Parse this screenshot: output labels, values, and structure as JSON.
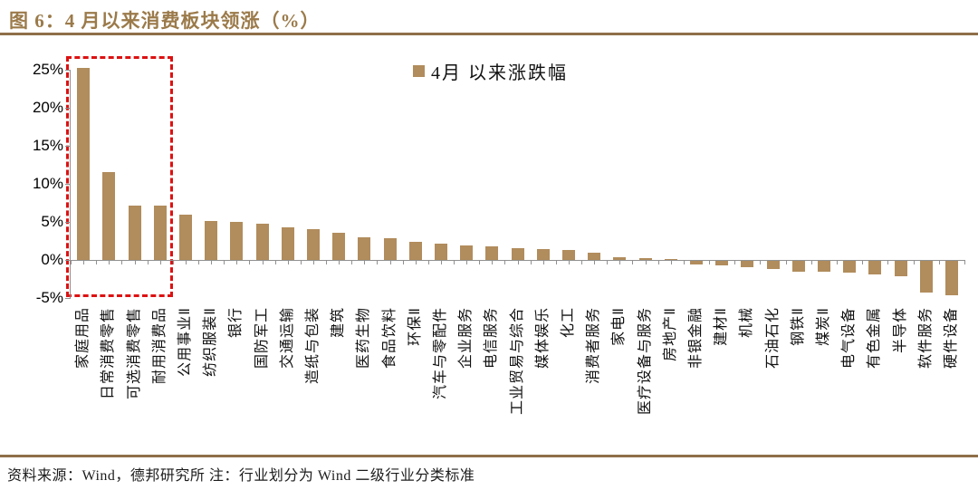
{
  "title": "图 6：4 月以来消费板块领涨（%）",
  "footer": {
    "source_note": "资料来源：Wind，德邦研究所 注：行业划分为 Wind 二级行业分类标准"
  },
  "colors": {
    "accent_brown": "#9b7a4a",
    "rule_brown": "#8f6f49",
    "bar_tan": "#b18c5c",
    "highlight_red": "#dd1111",
    "axis_gray": "#909090"
  },
  "chart_data": {
    "type": "bar",
    "title": "图 6：4 月以来消费板块领涨（%）",
    "legend": "4月 以来涨跌幅",
    "legend_position": "top-center",
    "grid": false,
    "xlabel": "",
    "ylabel": "",
    "ylim": [
      -5,
      25
    ],
    "yticks": [
      25,
      20,
      15,
      10,
      5,
      0,
      -5
    ],
    "ytick_format": "percent",
    "bar_color": "#b18c5c",
    "highlight_box": {
      "color": "#dd1111",
      "style": "dashed",
      "from_category": "家庭用品",
      "to_category": "耐用消费品"
    },
    "categories": [
      "家庭用品",
      "日常消费零售",
      "可选消费零售",
      "耐用消费品",
      "公用事业Ⅱ",
      "纺织服装Ⅱ",
      "银行",
      "国防军工",
      "交通运输",
      "造纸与包装",
      "建筑",
      "医药生物",
      "食品饮料",
      "环保Ⅱ",
      "汽车与零配件",
      "企业服务",
      "电信服务",
      "工业贸易与综合",
      "媒体娱乐",
      "化工",
      "消费者服务",
      "家电Ⅱ",
      "医疗设备与服务",
      "房地产Ⅱ",
      "非银金融",
      "建材Ⅱ",
      "机械",
      "石油石化",
      "钢铁Ⅱ",
      "煤炭Ⅱ",
      "电气设备",
      "有色金属",
      "半导体",
      "软件服务",
      "硬件设备"
    ],
    "values": [
      25.2,
      11.5,
      7.1,
      7.1,
      6.0,
      5.1,
      5.0,
      4.8,
      4.3,
      4.0,
      3.6,
      3.0,
      2.8,
      2.4,
      2.1,
      1.9,
      1.8,
      1.6,
      1.4,
      1.3,
      1.0,
      0.4,
      0.2,
      0.1,
      -0.5,
      -0.6,
      -0.8,
      -1.1,
      -1.4,
      -1.4,
      -1.6,
      -1.8,
      -2.0,
      -4.2,
      -4.5
    ]
  }
}
